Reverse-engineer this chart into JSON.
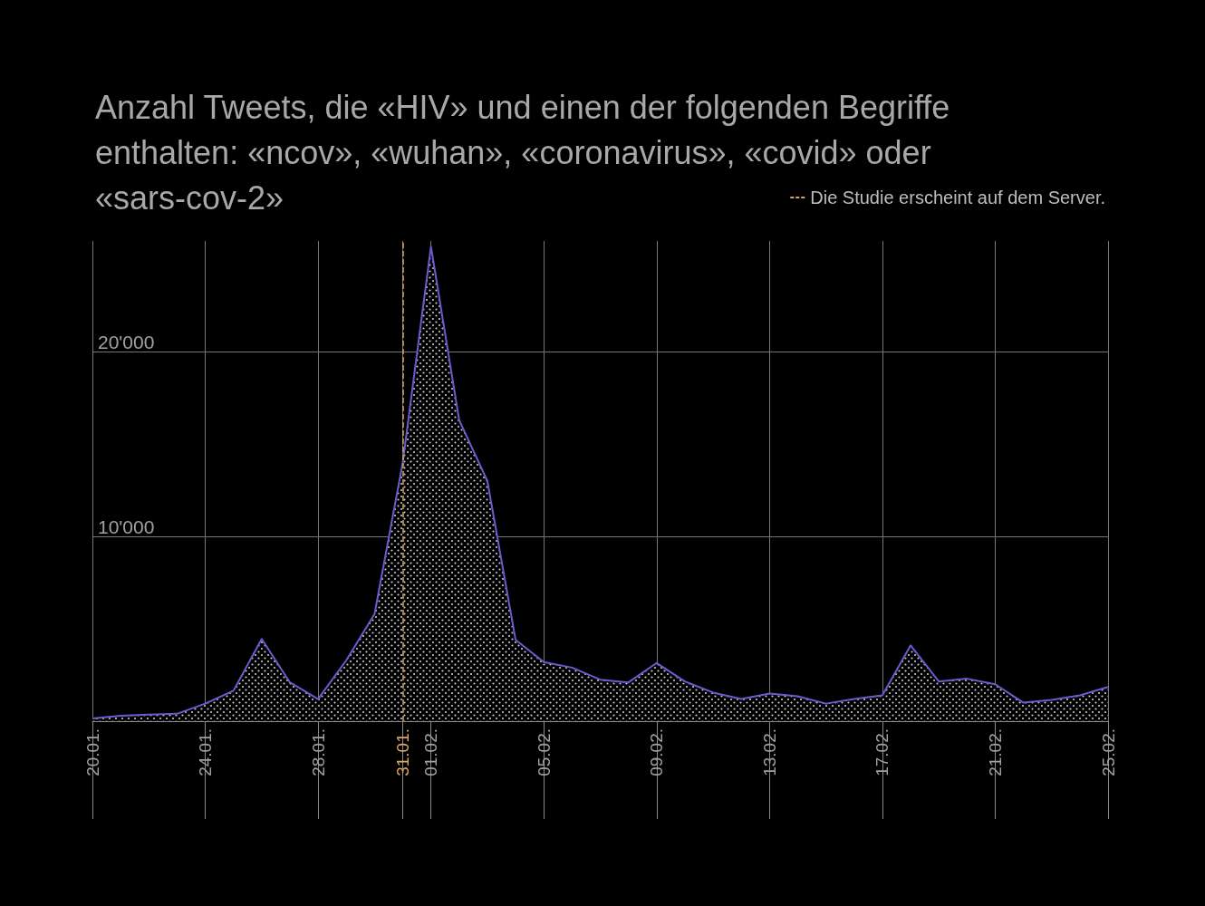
{
  "chart_data": {
    "type": "area",
    "title": "Anzahl Tweets, die «HIV» und einen der folgenden Begriffe enthalten: «ncov», «wuhan», «coronavirus», «covid» oder «sars-cov-2»",
    "x": [
      "--01-20",
      "--01-21",
      "--01-22",
      "--01-23",
      "--01-24",
      "--01-25",
      "--01-26",
      "--01-27",
      "--01-28",
      "--01-29",
      "--01-30",
      "--01-31",
      "--02-01",
      "--02-02",
      "--02-03",
      "--02-04",
      "--02-05",
      "--02-06",
      "--02-07",
      "--02-08",
      "--02-09",
      "--02-10",
      "--02-11",
      "--02-12",
      "--02-13",
      "--02-14",
      "--02-15",
      "--02-16",
      "--02-17",
      "--02-18",
      "--02-19",
      "--02-20",
      "--02-21",
      "--02-22",
      "--02-23",
      "--02-24",
      "--02-25"
    ],
    "series": [
      {
        "color": "#6a5ccd",
        "values": [
          150,
          300,
          350,
          400,
          950,
          1650,
          4450,
          2100,
          1200,
          3300,
          5800,
          14000,
          25700,
          16300,
          13000,
          4400,
          3200,
          2900,
          2250,
          2100,
          3150,
          2150,
          1550,
          1200,
          1500,
          1350,
          950,
          1200,
          1400,
          4100,
          2150,
          2300,
          2000,
          1000,
          1150,
          1400,
          1850
        ]
      }
    ],
    "xlim": [
      "--01-20",
      "--02-25"
    ],
    "xticks": [
      {
        "value": "--01-20",
        "label": "20.01."
      },
      {
        "value": "--01-24",
        "label": "24.01."
      },
      {
        "value": "--01-28",
        "label": "28.01."
      },
      {
        "value": "--01-31",
        "label": "31.01."
      },
      {
        "value": "--02-01",
        "label": "01.02."
      },
      {
        "value": "--02-05",
        "label": "05.02."
      },
      {
        "value": "--02-09",
        "label": "09.02."
      },
      {
        "value": "--02-13",
        "label": "13.02."
      },
      {
        "value": "--02-17",
        "label": "17.02."
      },
      {
        "value": "--02-21",
        "label": "21.02."
      },
      {
        "value": "--02-25",
        "label": "25.02."
      }
    ],
    "ylim": [
      0,
      26000
    ],
    "yticks": [
      {
        "value": 0,
        "label": null
      },
      {
        "value": 10000,
        "label": "10'000"
      },
      {
        "value": 20000,
        "label": "20'000"
      }
    ],
    "ref_lines": [
      {
        "axis": "x",
        "value": "--01-31",
        "label": "Die Studie erscheint auf dem Server.",
        "color": "#d9a55f",
        "line_style": "dashed"
      }
    ],
    "grid": true,
    "legend": "top right",
    "marker": "none",
    "line_style": "solid"
  }
}
